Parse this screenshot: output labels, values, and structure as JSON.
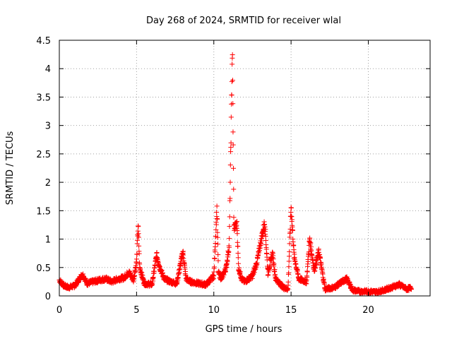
{
  "chart_data": {
    "type": "scatter",
    "title": "Day 268 of 2024, SRMTID for receiver wlal",
    "xlabel": "GPS time / hours",
    "ylabel": "SRMTID / TECUs",
    "xlim": [
      0,
      24
    ],
    "ylim": [
      0,
      4.5
    ],
    "grid": true,
    "marker": "+",
    "series_color": "#ff0000",
    "x_ticks": [
      0,
      5,
      10,
      15,
      20
    ],
    "x_tick_labels": [
      "0",
      "5",
      "10",
      "15",
      "20"
    ],
    "y_ticks": [
      0,
      0.5,
      1,
      1.5,
      2,
      2.5,
      3,
      3.5,
      4,
      4.5
    ],
    "y_tick_labels": [
      "0",
      "0.5",
      "1",
      "1.5",
      "2",
      "2.5",
      "3",
      "3.5",
      "4",
      "4.5"
    ],
    "profile": {
      "description_of_data": "SRMTID estimate points over 24 GPS hours",
      "x": [
        0.0,
        0.3,
        0.6,
        1.0,
        1.3,
        1.5,
        1.8,
        2.2,
        2.6,
        3.0,
        3.4,
        3.8,
        4.2,
        4.5,
        4.8,
        5.0,
        5.1,
        5.2,
        5.5,
        6.0,
        6.3,
        6.5,
        6.8,
        7.2,
        7.6,
        8.0,
        8.2,
        8.5,
        9.0,
        9.5,
        10.0,
        10.2,
        10.3,
        10.5,
        10.8,
        11.0,
        11.2,
        11.3,
        11.5,
        11.6,
        11.8,
        12.0,
        12.5,
        12.8,
        13.0,
        13.3,
        13.5,
        13.8,
        14.0,
        14.5,
        14.8,
        15.0,
        15.2,
        15.5,
        16.0,
        16.2,
        16.5,
        16.8,
        17.2,
        17.8,
        18.3,
        18.6,
        19.0,
        19.5,
        20.0,
        20.5,
        21.0,
        21.5,
        22.0,
        22.5,
        22.8
      ],
      "y": [
        0.28,
        0.18,
        0.15,
        0.18,
        0.3,
        0.38,
        0.22,
        0.25,
        0.28,
        0.3,
        0.25,
        0.3,
        0.32,
        0.42,
        0.28,
        0.6,
        1.25,
        0.5,
        0.22,
        0.2,
        0.72,
        0.5,
        0.3,
        0.25,
        0.22,
        0.78,
        0.3,
        0.25,
        0.22,
        0.2,
        0.35,
        1.55,
        0.4,
        0.3,
        0.5,
        0.9,
        4.35,
        1.2,
        1.25,
        0.5,
        0.3,
        0.25,
        0.35,
        0.6,
        0.9,
        1.3,
        0.4,
        0.75,
        0.3,
        0.15,
        0.12,
        1.58,
        0.7,
        0.3,
        0.25,
        1.0,
        0.45,
        0.78,
        0.12,
        0.15,
        0.25,
        0.3,
        0.1,
        0.08,
        0.08,
        0.07,
        0.1,
        0.15,
        0.2,
        0.12,
        0.15
      ]
    }
  }
}
